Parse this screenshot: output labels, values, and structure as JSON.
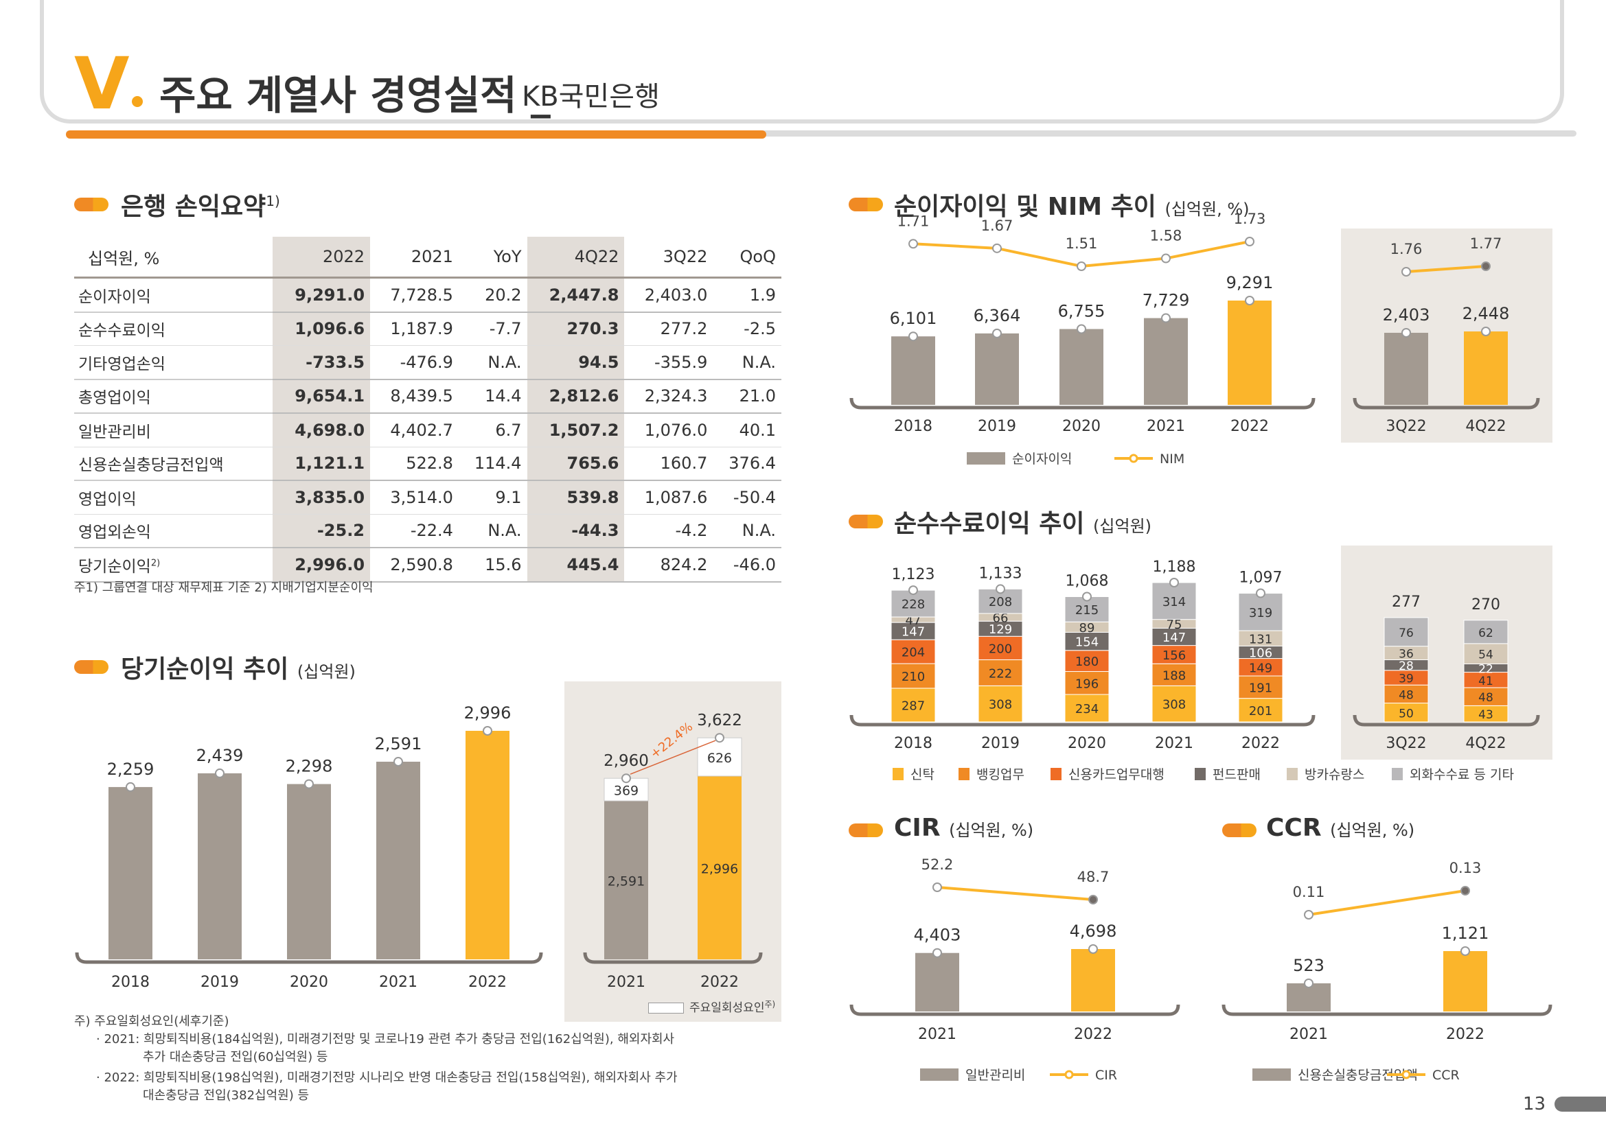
{
  "header": {
    "num": "V",
    "title": "주요 계열사 경영실적 _",
    "subtitle": "KB국민은행"
  },
  "pl": {
    "title": "은행 손익요약",
    "sup": "1)",
    "headers": [
      "십억원, %",
      "2022",
      "2021",
      "YoY",
      "4Q22",
      "3Q22",
      "QoQ"
    ],
    "rows": [
      [
        "순이자이익",
        "9,291.0",
        "7,728.5",
        "20.2",
        "2,447.8",
        "2,403.0",
        "1.9"
      ],
      [
        "순수수료이익",
        "1,096.6",
        "1,187.9",
        "-7.7",
        "270.3",
        "277.2",
        "-2.5"
      ],
      [
        "기타영업손익",
        "-733.5",
        "-476.9",
        "N.A.",
        "94.5",
        "-355.9",
        "N.A."
      ],
      [
        "총영업이익",
        "9,654.1",
        "8,439.5",
        "14.4",
        "2,812.6",
        "2,324.3",
        "21.0"
      ],
      [
        "일반관리비",
        "4,698.0",
        "4,402.7",
        "6.7",
        "1,507.2",
        "1,076.0",
        "40.1"
      ],
      [
        "신용손실충당금전입액",
        "1,121.1",
        "522.8",
        "114.4",
        "765.6",
        "160.7",
        "376.4"
      ],
      [
        "영업이익",
        "3,835.0",
        "3,514.0",
        "9.1",
        "539.8",
        "1,087.6",
        "-50.4"
      ],
      [
        "영업외손익",
        "-25.2",
        "-22.4",
        "N.A.",
        "-44.3",
        "-4.2",
        "N.A."
      ],
      [
        "당기순이익",
        "2,996.0",
        "2,590.8",
        "15.6",
        "445.4",
        "824.2",
        "-46.0"
      ]
    ],
    "last_sup": "2)",
    "note": "주1) 그룹연결 대상 재무제표 기준   2) 지배기업지분순이익"
  },
  "ni": {
    "title": "당기순이익 추이",
    "unit": "(십억원)",
    "notes": [
      "주) 주요일회성요인(세후기준)",
      "· 2021: 희망퇴직비용(184십억원), 미래경기전망 및 코로나19 관련 추가 충당금 전입(162십억원), 해외자회사",
      "추가 대손충당금 전입(60십억원) 등",
      "· 2022: 희망퇴직비용(198십억원), 미래경기전망 시나리오 반영 대손충당금 전입(158십억원), 해외자회사 추가",
      "대손충당금 전입(382십억원) 등"
    ],
    "legend": "주요일회성요인",
    "legend_sup": "주)",
    "growth": "+22.4%"
  },
  "nii": {
    "title": "순이자이익 및 NIM 추이",
    "unit": "(십억원, %)",
    "legend": [
      "순이자이익",
      "NIM"
    ]
  },
  "fee": {
    "title": "순수수료이익 추이",
    "unit": "(십억원)",
    "legend": [
      "신탁",
      "뱅킹업무",
      "신용카드업무대행",
      "펀드판매",
      "방카슈랑스",
      "외화수수료 등 기타"
    ]
  },
  "cir": {
    "title": "CIR",
    "unit": "(십억원, %)",
    "legend": [
      "일반관리비",
      "CIR"
    ]
  },
  "ccr": {
    "title": "CCR",
    "unit": "(십억원, %)",
    "legend": [
      "신용손실충당금전입액",
      "CCR"
    ]
  },
  "page": "13",
  "colors": {
    "gray": "#a39a91",
    "yellow": "#fbb52b",
    "orange": "#f08a24",
    "deep_orange": "#ef6c25",
    "dark_gray": "#726b67",
    "beige": "#d5c9b7",
    "light_gray": "#b9b8ba"
  },
  "chart_data": [
    {
      "type": "bar",
      "title": "당기순이익 추이",
      "categories": [
        "2018",
        "2019",
        "2020",
        "2021",
        "2022"
      ],
      "values": [
        2259,
        2439,
        2298,
        2591,
        2996
      ]
    },
    {
      "type": "bar",
      "title": "당기순이익 추이",
      "categories": [
        "2021",
        "2022"
      ],
      "series": [
        {
          "name": "당기순이익",
          "values": [
            2591,
            2996
          ]
        },
        {
          "name": "주요일회성요인",
          "values": [
            369,
            626
          ]
        }
      ],
      "totals": [
        2960,
        3622
      ]
    },
    {
      "type": "bar",
      "title": "순이자이익 및 NIM 추이",
      "categories": [
        "2018",
        "2019",
        "2020",
        "2021",
        "2022"
      ],
      "series": [
        {
          "name": "순이자이익",
          "values": [
            6101,
            6364,
            6755,
            7729,
            9291
          ]
        },
        {
          "name": "NIM",
          "values": [
            1.71,
            1.67,
            1.51,
            1.58,
            1.73
          ]
        }
      ]
    },
    {
      "type": "bar",
      "categories": [
        "3Q22",
        "4Q22"
      ],
      "series": [
        {
          "name": "순이자이익",
          "values": [
            2403,
            2448
          ]
        },
        {
          "name": "NIM",
          "values": [
            1.76,
            1.77
          ]
        }
      ]
    },
    {
      "type": "bar",
      "title": "순수수료이익 추이",
      "categories": [
        "2018",
        "2019",
        "2020",
        "2021",
        "2022"
      ],
      "series": [
        {
          "name": "신탁",
          "values": [
            287,
            308,
            234,
            308,
            201
          ]
        },
        {
          "name": "뱅킹업무",
          "values": [
            210,
            222,
            196,
            188,
            191
          ]
        },
        {
          "name": "신용카드업무대행",
          "values": [
            204,
            200,
            180,
            156,
            149
          ]
        },
        {
          "name": "펀드판매",
          "values": [
            147,
            129,
            154,
            147,
            106
          ]
        },
        {
          "name": "방카슈랑스",
          "values": [
            47,
            66,
            89,
            75,
            131
          ]
        },
        {
          "name": "외화수수료 등 기타",
          "values": [
            228,
            208,
            215,
            314,
            319
          ]
        }
      ],
      "totals": [
        1123,
        1133,
        1068,
        1188,
        1097
      ]
    },
    {
      "type": "bar",
      "categories": [
        "3Q22",
        "4Q22"
      ],
      "series": [
        {
          "name": "신탁",
          "values": [
            50,
            43
          ]
        },
        {
          "name": "뱅킹업무",
          "values": [
            48,
            48
          ]
        },
        {
          "name": "신용카드업무대행",
          "values": [
            39,
            41
          ]
        },
        {
          "name": "펀드판매",
          "values": [
            28,
            22
          ]
        },
        {
          "name": "방카슈랑스",
          "values": [
            36,
            54
          ]
        },
        {
          "name": "외화수수료 등 기타",
          "values": [
            76,
            62
          ]
        }
      ],
      "totals": [
        277,
        270
      ]
    },
    {
      "type": "bar",
      "title": "CIR",
      "categories": [
        "2021",
        "2022"
      ],
      "series": [
        {
          "name": "일반관리비",
          "values": [
            4403,
            4698
          ]
        },
        {
          "name": "CIR",
          "values": [
            52.2,
            48.7
          ]
        }
      ]
    },
    {
      "type": "bar",
      "title": "CCR",
      "categories": [
        "2021",
        "2022"
      ],
      "series": [
        {
          "name": "신용손실충당금전입액",
          "values": [
            523,
            1121
          ]
        },
        {
          "name": "CCR",
          "values": [
            0.11,
            0.13
          ]
        }
      ]
    }
  ]
}
